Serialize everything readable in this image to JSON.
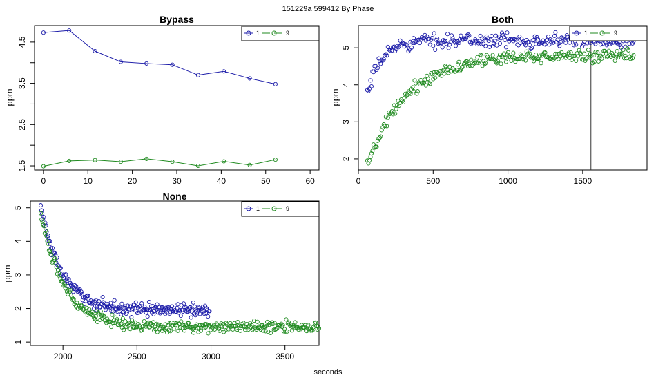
{
  "page": {
    "main_title": "151229a   599412   By Phase",
    "x_axis_label": "seconds"
  },
  "colors": {
    "series_1": "#1a1aa8",
    "series_9": "#1f8a1f",
    "frame": "#000000"
  },
  "chart_data": [
    {
      "id": "bypass",
      "type": "line",
      "title": "Bypass",
      "ylabel": "ppm",
      "xlim": [
        -2,
        62
      ],
      "ylim": [
        1.4,
        4.9
      ],
      "xticks": [
        0,
        10,
        20,
        30,
        40,
        50,
        60
      ],
      "yticks": [
        1.5,
        2,
        2.5,
        3,
        3.5,
        4,
        4.5
      ],
      "ytick_labels": [
        "1.5",
        "",
        "2.5",
        "",
        "3.5",
        "",
        "4.5"
      ],
      "legend": [
        "1",
        "9"
      ],
      "series": [
        {
          "name": "1",
          "x": [
            0,
            5.8,
            11.6,
            17.4,
            23.2,
            29,
            34.8,
            40.6,
            46.4,
            52.2
          ],
          "values": [
            4.73,
            4.78,
            4.28,
            4.02,
            3.98,
            3.95,
            3.7,
            3.79,
            3.62,
            3.48
          ]
        },
        {
          "name": "9",
          "x": [
            0,
            5.8,
            11.6,
            17.4,
            23.2,
            29,
            34.8,
            40.6,
            46.4,
            52.2
          ],
          "values": [
            1.49,
            1.62,
            1.64,
            1.6,
            1.67,
            1.6,
            1.5,
            1.61,
            1.52,
            1.65
          ]
        }
      ]
    },
    {
      "id": "both",
      "type": "scatter",
      "title": "Both",
      "ylabel": "ppm",
      "xlim": [
        0,
        1930
      ],
      "ylim": [
        1.7,
        5.6
      ],
      "xticks": [
        0,
        500,
        1000,
        1500
      ],
      "yticks": [
        2,
        3,
        4,
        5
      ],
      "legend": [
        "1",
        "9"
      ],
      "vline_x": 1555,
      "series": [
        {
          "name": "1",
          "x_range": [
            60,
            1840
          ],
          "n": 260,
          "model": {
            "start": 3.7,
            "plateau": 5.2,
            "tau": 90,
            "noise": 0.18
          }
        },
        {
          "name": "9",
          "x_range": [
            60,
            1840
          ],
          "n": 260,
          "model": {
            "start": 1.8,
            "plateau": 4.8,
            "tau": 260,
            "noise": 0.16
          }
        }
      ]
    },
    {
      "id": "none",
      "type": "scatter",
      "title": "None",
      "ylabel": "ppm",
      "xlim": [
        1780,
        3730
      ],
      "ylim": [
        0.9,
        5.2
      ],
      "xticks": [
        2000,
        2500,
        3000,
        3500
      ],
      "yticks": [
        1,
        2,
        3,
        4,
        5
      ],
      "legend": [
        "1",
        "9"
      ],
      "series": [
        {
          "name": "1",
          "x_range": [
            1850,
            2990
          ],
          "n": 230,
          "model": {
            "start": 5.05,
            "plateau": 1.95,
            "tau": 140,
            "noise": 0.18
          }
        },
        {
          "name": "9",
          "x_range": [
            1850,
            3730
          ],
          "n": 340,
          "model": {
            "start": 4.8,
            "plateau": 1.45,
            "tau": 160,
            "noise": 0.16
          }
        }
      ]
    }
  ]
}
